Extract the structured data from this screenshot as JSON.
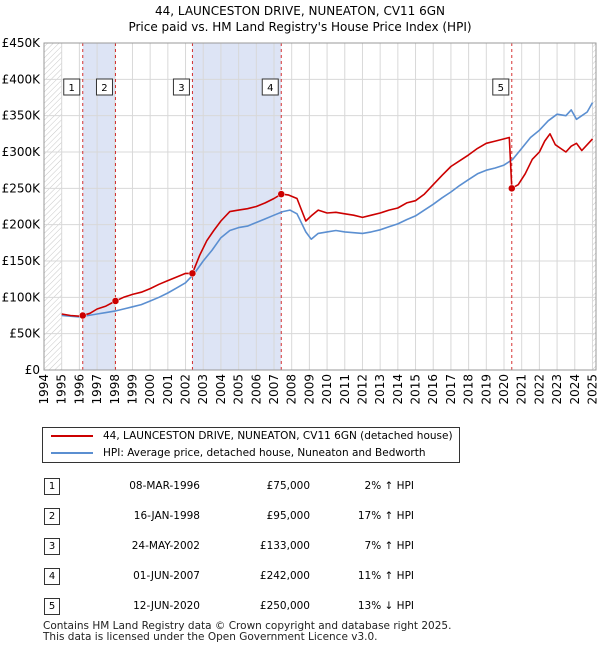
{
  "chart_data": {
    "type": "line",
    "title": "44, LAUNCESTON DRIVE, NUNEATON, CV11 6GN",
    "subtitle": "Price paid vs. HM Land Registry's House Price Index (HPI)",
    "xlabel": "",
    "ylabel": "",
    "xlim": [
      1994,
      2025.2
    ],
    "ylim": [
      0,
      450000
    ],
    "y_ticks": [
      {
        "value": 0,
        "label": "£0"
      },
      {
        "value": 50000,
        "label": "£50K"
      },
      {
        "value": 100000,
        "label": "£100K"
      },
      {
        "value": 150000,
        "label": "£150K"
      },
      {
        "value": 200000,
        "label": "£200K"
      },
      {
        "value": 250000,
        "label": "£250K"
      },
      {
        "value": 300000,
        "label": "£300K"
      },
      {
        "value": 350000,
        "label": "£350K"
      },
      {
        "value": 400000,
        "label": "£400K"
      },
      {
        "value": 450000,
        "label": "£450K"
      }
    ],
    "x_ticks": [
      "1994",
      "1995",
      "1996",
      "1997",
      "1998",
      "1999",
      "2000",
      "2001",
      "2002",
      "2003",
      "2004",
      "2005",
      "2006",
      "2007",
      "2008",
      "2009",
      "2010",
      "2011",
      "2012",
      "2013",
      "2014",
      "2015",
      "2016",
      "2017",
      "2018",
      "2019",
      "2020",
      "2021",
      "2022",
      "2023",
      "2024",
      "2025"
    ],
    "data_start_year": 1995.0,
    "grid": true,
    "colors": {
      "price": "#cc0000",
      "hpi": "#5b8fd1",
      "shade": "#dde4f5",
      "vline": "#cc0000",
      "grid": "#d8d8d8"
    },
    "series": [
      {
        "name": "44, LAUNCESTON DRIVE, NUNEATON, CV11 6GN (detached house)",
        "color": "#cc0000",
        "x": [
          1995.0,
          1995.5,
          1996.0,
          1996.19,
          1996.6,
          1997.0,
          1997.5,
          1998.04,
          1998.5,
          1999.0,
          1999.5,
          2000.0,
          2000.5,
          2001.0,
          2001.5,
          2002.0,
          2002.39,
          2002.8,
          2003.2,
          2003.6,
          2004.0,
          2004.5,
          2005.0,
          2005.5,
          2006.0,
          2006.5,
          2007.0,
          2007.41,
          2007.8,
          2008.3,
          2008.8,
          2009.1,
          2009.5,
          2010.0,
          2010.5,
          2011.0,
          2011.5,
          2012.0,
          2012.5,
          2013.0,
          2013.5,
          2014.0,
          2014.5,
          2015.0,
          2015.5,
          2016.0,
          2016.5,
          2017.0,
          2017.5,
          2018.0,
          2018.5,
          2019.0,
          2019.5,
          2020.0,
          2020.3,
          2020.44,
          2020.8,
          2021.2,
          2021.6,
          2022.0,
          2022.3,
          2022.6,
          2022.9,
          2023.2,
          2023.5,
          2023.8,
          2024.1,
          2024.4,
          2024.7,
          2025.0
        ],
        "y": [
          77000,
          75000,
          74000,
          75000,
          78000,
          84000,
          88000,
          95000,
          100000,
          104000,
          107000,
          112000,
          118000,
          123000,
          128000,
          133000,
          133000,
          158000,
          178000,
          192000,
          205000,
          218000,
          220000,
          222000,
          225000,
          230000,
          236000,
          242000,
          241000,
          236000,
          205000,
          212000,
          220000,
          216000,
          217000,
          215000,
          213000,
          210000,
          213000,
          216000,
          220000,
          223000,
          230000,
          233000,
          242000,
          255000,
          268000,
          280000,
          288000,
          296000,
          305000,
          312000,
          315000,
          318000,
          320000,
          250000,
          255000,
          270000,
          290000,
          300000,
          315000,
          325000,
          310000,
          305000,
          300000,
          308000,
          312000,
          302000,
          310000,
          318000
        ],
        "points": [
          {
            "label": "1",
            "x": 1996.19,
            "y": 75000
          },
          {
            "label": "2",
            "x": 1998.04,
            "y": 95000
          },
          {
            "label": "3",
            "x": 2002.39,
            "y": 133000
          },
          {
            "label": "4",
            "x": 2007.41,
            "y": 242000
          },
          {
            "label": "5",
            "x": 2020.44,
            "y": 250000
          }
        ]
      },
      {
        "name": "HPI: Average price, detached house, Nuneaton and Bedworth",
        "color": "#5b8fd1",
        "x": [
          1995.0,
          1995.5,
          1996.0,
          1996.5,
          1997.0,
          1997.5,
          1998.0,
          1998.5,
          1999.0,
          1999.5,
          2000.0,
          2000.5,
          2001.0,
          2001.5,
          2002.0,
          2002.5,
          2003.0,
          2003.5,
          2004.0,
          2004.5,
          2005.0,
          2005.5,
          2006.0,
          2006.5,
          2007.0,
          2007.5,
          2007.9,
          2008.3,
          2008.8,
          2009.1,
          2009.5,
          2010.0,
          2010.5,
          2011.0,
          2011.5,
          2012.0,
          2012.5,
          2013.0,
          2013.5,
          2014.0,
          2014.5,
          2015.0,
          2015.5,
          2016.0,
          2016.5,
          2017.0,
          2017.5,
          2018.0,
          2018.5,
          2019.0,
          2019.5,
          2020.0,
          2020.5,
          2021.0,
          2021.5,
          2022.0,
          2022.5,
          2023.0,
          2023.5,
          2023.8,
          2024.1,
          2024.4,
          2024.7,
          2025.0
        ],
        "y": [
          75000,
          74000,
          73000,
          75000,
          77000,
          79000,
          81000,
          84000,
          87000,
          90000,
          95000,
          100000,
          106000,
          113000,
          120000,
          133000,
          150000,
          165000,
          182000,
          192000,
          196000,
          198000,
          203000,
          208000,
          213000,
          218000,
          220000,
          215000,
          190000,
          180000,
          188000,
          190000,
          192000,
          190000,
          189000,
          188000,
          190000,
          193000,
          197000,
          201000,
          207000,
          212000,
          220000,
          228000,
          237000,
          245000,
          254000,
          262000,
          270000,
          275000,
          278000,
          282000,
          290000,
          305000,
          320000,
          330000,
          343000,
          352000,
          350000,
          358000,
          345000,
          350000,
          355000,
          368000
        ]
      }
    ],
    "sales_table": [
      {
        "num": "1",
        "date": "08-MAR-1996",
        "price": "£75,000",
        "hpi": "2% ↑ HPI"
      },
      {
        "num": "2",
        "date": "16-JAN-1998",
        "price": "£95,000",
        "hpi": "17% ↑ HPI"
      },
      {
        "num": "3",
        "date": "24-MAY-2002",
        "price": "£133,000",
        "hpi": "7% ↑ HPI"
      },
      {
        "num": "4",
        "date": "01-JUN-2007",
        "price": "£242,000",
        "hpi": "11% ↑ HPI"
      },
      {
        "num": "5",
        "date": "12-JUN-2020",
        "price": "£250,000",
        "hpi": "13% ↓ HPI"
      }
    ],
    "footer": {
      "line1": "Contains HM Land Registry data © Crown copyright and database right 2025.",
      "line2": "This data is licensed under the Open Government Licence v3.0."
    }
  }
}
